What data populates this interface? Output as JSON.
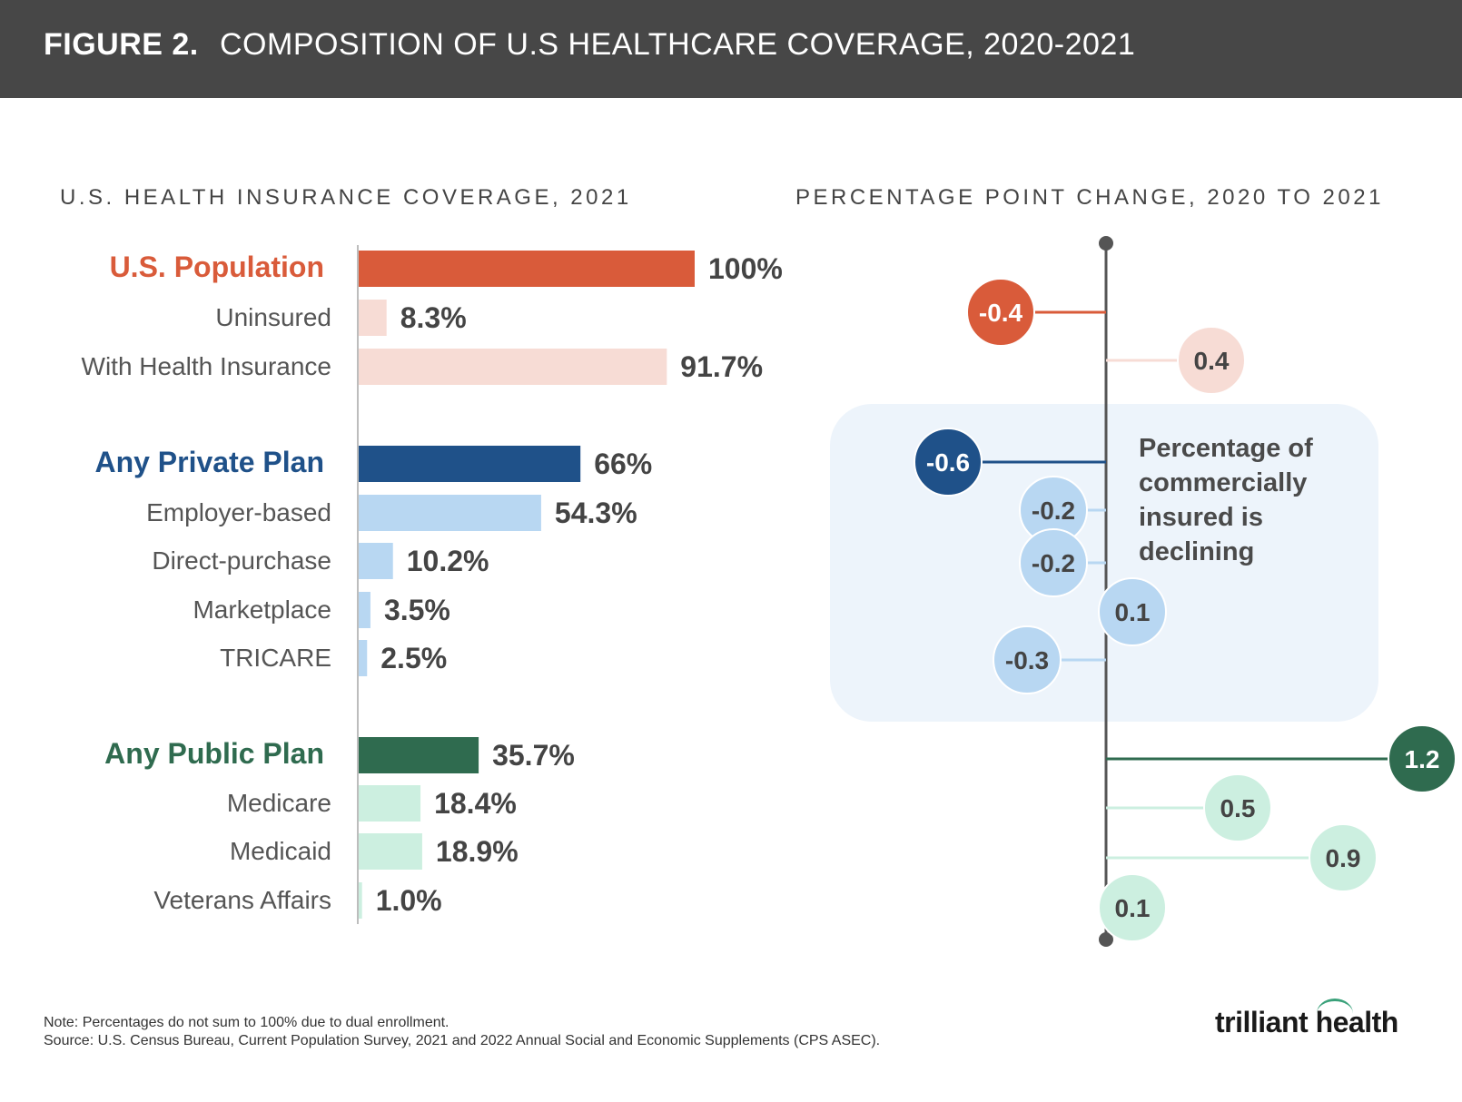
{
  "header": {
    "figure_label": "FIGURE 2.",
    "title": "COMPOSITION OF U.S HEALTHCARE COVERAGE, 2020-2021"
  },
  "chart_data": [
    {
      "type": "bar",
      "orientation": "horizontal",
      "title": "U.S. HEALTH INSURANCE COVERAGE, 2021",
      "unit": "%",
      "xlim": [
        0,
        100
      ],
      "groups": [
        {
          "name": "U.S. Population",
          "color": "#d95b3a",
          "light_color": "#f7dcd5",
          "items": [
            {
              "label": "U.S. Population",
              "value": 100,
              "value_label": "100%",
              "header": true
            },
            {
              "label": "Uninsured",
              "value": 8.3,
              "value_label": "8.3%"
            },
            {
              "label": "With Health Insurance",
              "value": 91.7,
              "value_label": "91.7%"
            }
          ]
        },
        {
          "name": "Any Private Plan",
          "color": "#1f5189",
          "light_color": "#b8d7f2",
          "items": [
            {
              "label": "Any Private Plan",
              "value": 66,
              "value_label": "66%",
              "header": true
            },
            {
              "label": "Employer-based",
              "value": 54.3,
              "value_label": "54.3%"
            },
            {
              "label": "Direct-purchase",
              "value": 10.2,
              "value_label": "10.2%"
            },
            {
              "label": "Marketplace",
              "value": 3.5,
              "value_label": "3.5%"
            },
            {
              "label": "TRICARE",
              "value": 2.5,
              "value_label": "2.5%"
            }
          ]
        },
        {
          "name": "Any Public Plan",
          "color": "#2f6b4f",
          "light_color": "#ccefe0",
          "items": [
            {
              "label": "Any Public Plan",
              "value": 35.7,
              "value_label": "35.7%",
              "header": true
            },
            {
              "label": "Medicare",
              "value": 18.4,
              "value_label": "18.4%"
            },
            {
              "label": "Medicaid",
              "value": 18.9,
              "value_label": "18.9%"
            },
            {
              "label": "Veterans Affairs",
              "value": 1.0,
              "value_label": "1.0%"
            }
          ]
        }
      ]
    },
    {
      "type": "scatter",
      "subtype": "diverging lollipop",
      "title": "PERCENTAGE POINT CHANGE, 2020 TO 2021",
      "unit": "percentage points",
      "xlim": [
        -0.6,
        1.2
      ],
      "points": [
        {
          "category": "U.S. Population",
          "value": -0.4,
          "label": "-0.4"
        },
        {
          "category": "With Health Insurance",
          "value": 0.4,
          "label": "0.4"
        },
        {
          "category": "Any Private Plan",
          "value": -0.6,
          "label": "-0.6"
        },
        {
          "category": "Employer-based",
          "value": -0.2,
          "label": "-0.2"
        },
        {
          "category": "Direct-purchase",
          "value": -0.2,
          "label": "-0.2"
        },
        {
          "category": "Marketplace",
          "value": 0.1,
          "label": "0.1"
        },
        {
          "category": "TRICARE",
          "value": -0.3,
          "label": "-0.3"
        },
        {
          "category": "Any Public Plan",
          "value": 1.2,
          "label": "1.2"
        },
        {
          "category": "Medicare",
          "value": 0.5,
          "label": "0.5"
        },
        {
          "category": "Medicaid",
          "value": 0.9,
          "label": "0.9"
        },
        {
          "category": "Veterans Affairs",
          "value": 0.1,
          "label": "0.1"
        }
      ],
      "annotation": "Percentage of commercially insured is declining",
      "highlight_color": "#edf4fb"
    }
  ],
  "footer": {
    "note": "Note: Percentages do not sum to 100% due to dual enrollment.",
    "source": "Source: U.S. Census Bureau, Current Population Survey, 2021 and 2022 Annual Social and Economic Supplements (CPS ASEC)."
  },
  "logo": {
    "text": "trilliant health"
  }
}
